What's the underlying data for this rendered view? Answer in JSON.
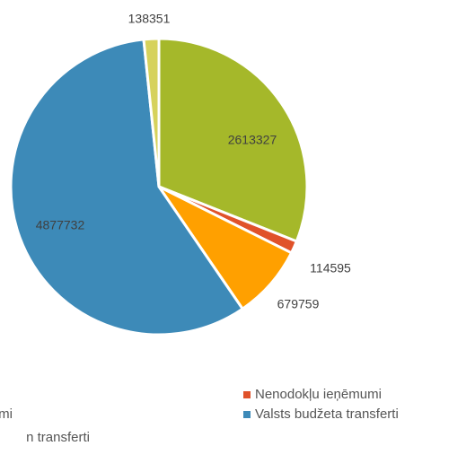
{
  "chart_data": {
    "type": "pie",
    "categories": [
      null,
      "Nenodokļu ieņēmumi",
      "mi",
      "Valsts budžeta transferti",
      "n transferti"
    ],
    "values": [
      2613327,
      114595,
      679759,
      4877732,
      138351
    ],
    "colors": [
      "#a5b82a",
      "#e0522a",
      "#ffa000",
      "#3d8ab8",
      "#d6d25c"
    ],
    "legend": "bottom"
  }
}
